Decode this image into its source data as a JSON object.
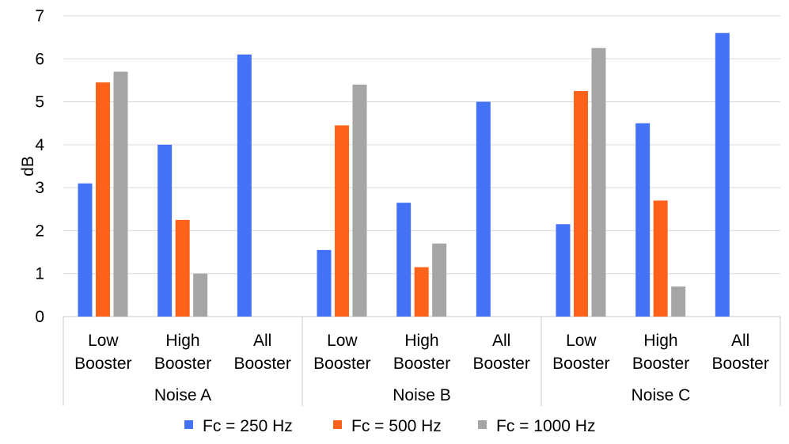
{
  "chart_data": {
    "type": "bar",
    "title": "",
    "xlabel": "",
    "ylabel": "dB",
    "ylim": [
      0,
      7
    ],
    "yticks": [
      0,
      1,
      2,
      3,
      4,
      5,
      6,
      7
    ],
    "grid": true,
    "legend_position": "bottom",
    "groups": [
      {
        "label": "Noise A",
        "categories": [
          {
            "line1": "Low",
            "line2": "Booster"
          },
          {
            "line1": "High",
            "line2": "Booster"
          },
          {
            "line1": "All",
            "line2": "Booster"
          }
        ]
      },
      {
        "label": "Noise B",
        "categories": [
          {
            "line1": "Low",
            "line2": "Booster"
          },
          {
            "line1": "High",
            "line2": "Booster"
          },
          {
            "line1": "All",
            "line2": "Booster"
          }
        ]
      },
      {
        "label": "Noise C",
        "categories": [
          {
            "line1": "Low",
            "line2": "Booster"
          },
          {
            "line1": "High",
            "line2": "Booster"
          },
          {
            "line1": "All",
            "line2": "Booster"
          }
        ]
      }
    ],
    "series": [
      {
        "name": "Fc = 250 Hz",
        "color": "#4472f7",
        "values": [
          3.1,
          4.0,
          6.1,
          1.55,
          2.65,
          5.0,
          2.15,
          4.5,
          6.6
        ]
      },
      {
        "name": "Fc = 500 Hz",
        "color": "#fc6219",
        "values": [
          5.45,
          2.25,
          null,
          4.45,
          1.15,
          null,
          5.25,
          2.7,
          null
        ]
      },
      {
        "name": "Fc = 1000 Hz",
        "color": "#a5a5a5",
        "values": [
          5.7,
          1.0,
          null,
          5.4,
          1.7,
          null,
          6.25,
          0.7,
          null
        ]
      }
    ]
  }
}
